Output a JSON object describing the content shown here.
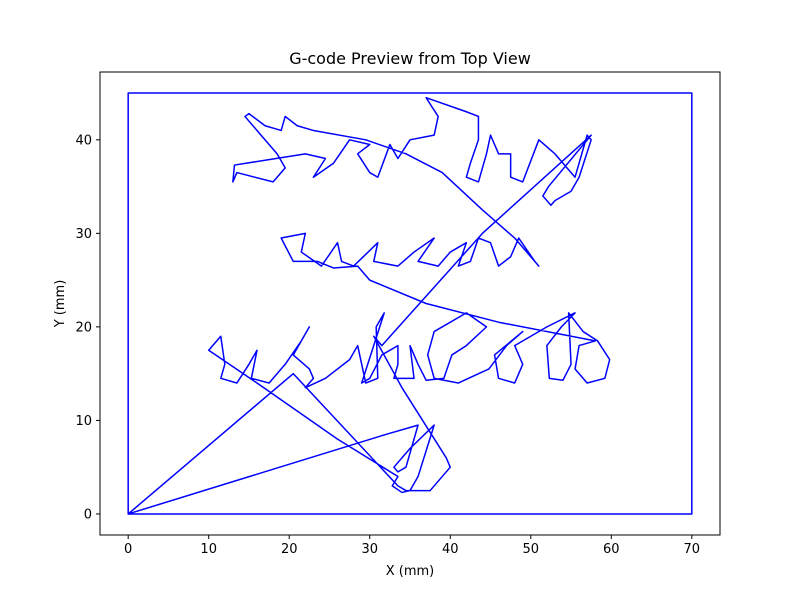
{
  "chart_data": {
    "type": "line",
    "title": "G-code Preview from Top View",
    "xlabel": "X (mm)",
    "ylabel": "Y (mm)",
    "xlim": [
      -3.5,
      73.5
    ],
    "ylim": [
      -2.25,
      47.25
    ],
    "xticks": [
      0,
      10,
      20,
      30,
      40,
      50,
      60,
      70
    ],
    "yticks": [
      0,
      10,
      20,
      30,
      40
    ],
    "grid": false,
    "legend": "none",
    "line_color": "#0000ff",
    "series": [
      {
        "points": [
          [
            0,
            0
          ],
          [
            70,
            0
          ],
          [
            70,
            45
          ],
          [
            0,
            45
          ],
          [
            0,
            0
          ],
          [
            32,
            8.5
          ],
          [
            36,
            9.5
          ],
          [
            34.5,
            5
          ],
          [
            33.5,
            4.5
          ],
          [
            33,
            5
          ],
          [
            35,
            7
          ],
          [
            38,
            9.5
          ],
          [
            36,
            4
          ],
          [
            35,
            2.5
          ],
          [
            34,
            2.3
          ],
          [
            32.8,
            3
          ],
          [
            33.5,
            4
          ],
          [
            26,
            8
          ],
          [
            16,
            14
          ],
          [
            10,
            17.5
          ],
          [
            11.5,
            19
          ],
          [
            12,
            16
          ],
          [
            11.5,
            14.5
          ],
          [
            13.5,
            14
          ],
          [
            15,
            16
          ],
          [
            16,
            17.5
          ],
          [
            15.3,
            14.5
          ],
          [
            17.5,
            14
          ],
          [
            19.5,
            16
          ],
          [
            21.5,
            18.5
          ],
          [
            22.5,
            20
          ],
          [
            20.5,
            17
          ],
          [
            22.5,
            15.5
          ],
          [
            23,
            14.5
          ],
          [
            22,
            13.5
          ],
          [
            24.5,
            14.5
          ],
          [
            27.5,
            16.5
          ],
          [
            28.5,
            18
          ],
          [
            29.5,
            14
          ],
          [
            31,
            14.5
          ],
          [
            30.8,
            20
          ],
          [
            31.8,
            21.5
          ],
          [
            29,
            14
          ],
          [
            30,
            14.5
          ],
          [
            31.5,
            17
          ],
          [
            33.5,
            18
          ],
          [
            33.5,
            16
          ],
          [
            33,
            14.5
          ],
          [
            35.5,
            14.5
          ],
          [
            35,
            18
          ],
          [
            36,
            16
          ],
          [
            37,
            14.3
          ],
          [
            39.2,
            14.5
          ],
          [
            40.2,
            17
          ],
          [
            42,
            18
          ],
          [
            44.5,
            20
          ],
          [
            42,
            21.5
          ],
          [
            38,
            19.5
          ],
          [
            37.2,
            17
          ],
          [
            38,
            14.5
          ],
          [
            41,
            14
          ],
          [
            44.8,
            15.5
          ],
          [
            47,
            18
          ],
          [
            49,
            19.5
          ],
          [
            45.5,
            17
          ],
          [
            46,
            14.5
          ],
          [
            48,
            14
          ],
          [
            49,
            16
          ],
          [
            48,
            18
          ],
          [
            52,
            20
          ],
          [
            55.5,
            21.5
          ],
          [
            53.8,
            20
          ],
          [
            52,
            18
          ],
          [
            52.3,
            14.5
          ],
          [
            54,
            14.3
          ],
          [
            55,
            16
          ],
          [
            54.7,
            21.5
          ],
          [
            56.5,
            19.5
          ],
          [
            58.3,
            18.5
          ],
          [
            59.8,
            16.5
          ],
          [
            59.2,
            14.5
          ],
          [
            57,
            14
          ],
          [
            55.5,
            15.5
          ],
          [
            56,
            18
          ],
          [
            58,
            18.5
          ],
          [
            46,
            20.5
          ],
          [
            37,
            22.5
          ],
          [
            30,
            25
          ],
          [
            28.5,
            26.5
          ],
          [
            25.5,
            26.3
          ],
          [
            23.5,
            27
          ],
          [
            20.5,
            27
          ],
          [
            19,
            29.5
          ],
          [
            22,
            30
          ],
          [
            21.5,
            28
          ],
          [
            24,
            26.5
          ],
          [
            26,
            29
          ],
          [
            26.5,
            27
          ],
          [
            28,
            26.5
          ],
          [
            31,
            29
          ],
          [
            30.5,
            27
          ],
          [
            33.5,
            26.5
          ],
          [
            35.5,
            28
          ],
          [
            38,
            29.5
          ],
          [
            36,
            27
          ],
          [
            38.5,
            26.5
          ],
          [
            40,
            28
          ],
          [
            42,
            29
          ],
          [
            41,
            26.5
          ],
          [
            42.5,
            27
          ],
          [
            43.5,
            29.5
          ],
          [
            45,
            29
          ],
          [
            46,
            26.5
          ],
          [
            47.5,
            27.5
          ],
          [
            48.5,
            29.5
          ],
          [
            50.5,
            27
          ],
          [
            51,
            26.5
          ],
          [
            48,
            29.5
          ],
          [
            44,
            32.5
          ],
          [
            39,
            36.5
          ],
          [
            34.5,
            38.5
          ],
          [
            29.5,
            40
          ],
          [
            23,
            41
          ],
          [
            21,
            41.5
          ],
          [
            19.5,
            42.5
          ],
          [
            19,
            41
          ],
          [
            17,
            41.5
          ],
          [
            15,
            42.8
          ],
          [
            14.5,
            42.5
          ],
          [
            16,
            41
          ],
          [
            18.5,
            38.5
          ],
          [
            19.5,
            37
          ],
          [
            18,
            35.5
          ],
          [
            13.5,
            36.5
          ],
          [
            13,
            35.5
          ],
          [
            13.2,
            37.3
          ],
          [
            22,
            38.5
          ],
          [
            24.5,
            38
          ],
          [
            23,
            36
          ],
          [
            25.5,
            37.5
          ],
          [
            27.5,
            40
          ],
          [
            30,
            39.5
          ],
          [
            28.5,
            38.5
          ],
          [
            30,
            36.5
          ],
          [
            31,
            36
          ],
          [
            32.5,
            39.5
          ],
          [
            33.5,
            38
          ],
          [
            35,
            40
          ],
          [
            38,
            40.5
          ],
          [
            38.5,
            42.5
          ],
          [
            37,
            44.5
          ],
          [
            42,
            43
          ],
          [
            43.5,
            42.5
          ],
          [
            43.5,
            40
          ],
          [
            42.5,
            37.5
          ],
          [
            42,
            36
          ],
          [
            43.5,
            35.5
          ],
          [
            44.5,
            38.5
          ],
          [
            45,
            40.5
          ],
          [
            46,
            38.5
          ],
          [
            47.5,
            38.5
          ],
          [
            47.5,
            36
          ],
          [
            49,
            35.5
          ],
          [
            51,
            40
          ],
          [
            53,
            38.5
          ],
          [
            55.5,
            36
          ],
          [
            57,
            40.5
          ],
          [
            57.5,
            40
          ],
          [
            56,
            36
          ],
          [
            55,
            34.5
          ],
          [
            53,
            33.5
          ],
          [
            52.5,
            33
          ],
          [
            51.5,
            34
          ],
          [
            52.2,
            35
          ],
          [
            57.5,
            40.5
          ],
          [
            44,
            30
          ],
          [
            31.5,
            18
          ],
          [
            30.5,
            19
          ],
          [
            34,
            13.5
          ],
          [
            39.5,
            6
          ],
          [
            40,
            5
          ],
          [
            37.5,
            2.5
          ],
          [
            34.5,
            2.5
          ],
          [
            33.5,
            3
          ],
          [
            20.5,
            15
          ],
          [
            0,
            0
          ]
        ]
      }
    ]
  }
}
